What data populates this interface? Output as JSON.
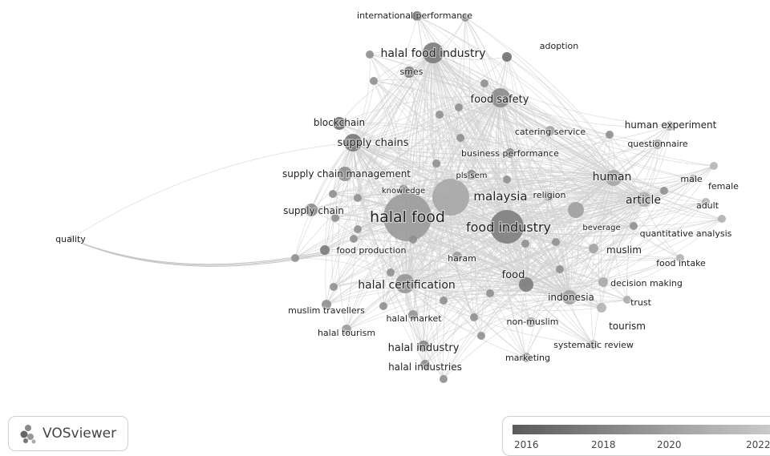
{
  "app": {
    "brand": "VOSviewer",
    "brand_icon": "vosviewer-logo-icon"
  },
  "legend": {
    "ticks": [
      "2016",
      "2018",
      "2020",
      "2022"
    ],
    "colors": [
      "#5a5a5a",
      "#999999",
      "#c9c9c9"
    ]
  },
  "network": {
    "labels": [
      "halal food",
      "food industry",
      "malaysia",
      "halal food industry",
      "halal certification",
      "food safety",
      "supply chains",
      "human",
      "article",
      "supply chain management",
      "supply chain",
      "indonesia",
      "food",
      "blockchain",
      "international performance",
      "adoption",
      "smes",
      "catering service",
      "human experiment",
      "questionnaire",
      "business performance",
      "pls-sem",
      "knowledge",
      "religion",
      "male",
      "female",
      "adult",
      "beverage",
      "quantitative analysis",
      "muslim",
      "food intake",
      "food production",
      "haram",
      "decision making",
      "trust",
      "tourism",
      "muslim travellers",
      "halal market",
      "halal tourism",
      "non-muslim",
      "systematic review",
      "halal industry",
      "marketing",
      "halal industries",
      "quality"
    ]
  }
}
